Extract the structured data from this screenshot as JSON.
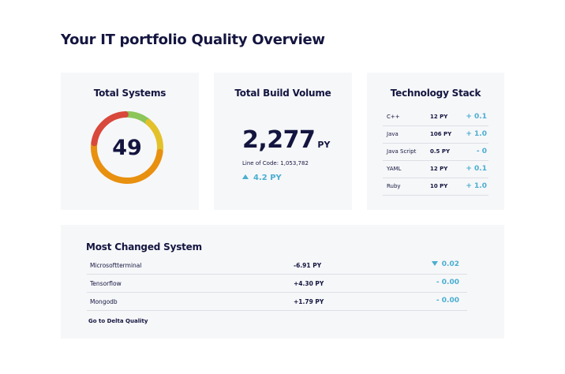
{
  "page": {
    "title": "Your IT portfolio Quality Overview"
  },
  "systems_card": {
    "title": "Total Systems",
    "value": "49",
    "donut_segments": [
      {
        "fraction": 0.12,
        "color": "#8cc55a"
      },
      {
        "fraction": 0.16,
        "color": "#e3c12a"
      },
      {
        "fraction": 0.5,
        "color": "#e8900f"
      },
      {
        "fraction": 0.22,
        "color": "#d8483b"
      }
    ]
  },
  "build_card": {
    "title": "Total Build Volume",
    "value": "2,277",
    "unit": "PY",
    "loc_label": "Line of Code: 1,053,782",
    "delta": "4.2 PY"
  },
  "tech_card": {
    "title": "Technology Stack",
    "rows": [
      {
        "name": "C++",
        "value": "12 PY",
        "delta": "+ 0.1"
      },
      {
        "name": "Java",
        "value": "106 PY",
        "delta": "+ 1.0"
      },
      {
        "name": "Java Script",
        "value": "0.5 PY",
        "delta": "- 0"
      },
      {
        "name": "YAML",
        "value": "12 PY",
        "delta": "+ 0.1"
      },
      {
        "name": "Ruby",
        "value": "10 PY",
        "delta": "+ 1.0"
      }
    ]
  },
  "changed_card": {
    "title": "Most Changed System",
    "rows": [
      {
        "name": "Microsoftterminal",
        "value": "-6.91 PY",
        "delta": "0.02"
      },
      {
        "name": "Tensorflow",
        "value": "+4.30 PY",
        "delta": "- 0.00"
      },
      {
        "name": "Mongodb",
        "value": "+1.79 PY",
        "delta": "- 0.00"
      }
    ],
    "link_label": "Go to Delta Quality"
  },
  "colors": {
    "accent": "#4aaed0",
    "text": "#14153f",
    "card_bg": "#f6f7f9"
  }
}
